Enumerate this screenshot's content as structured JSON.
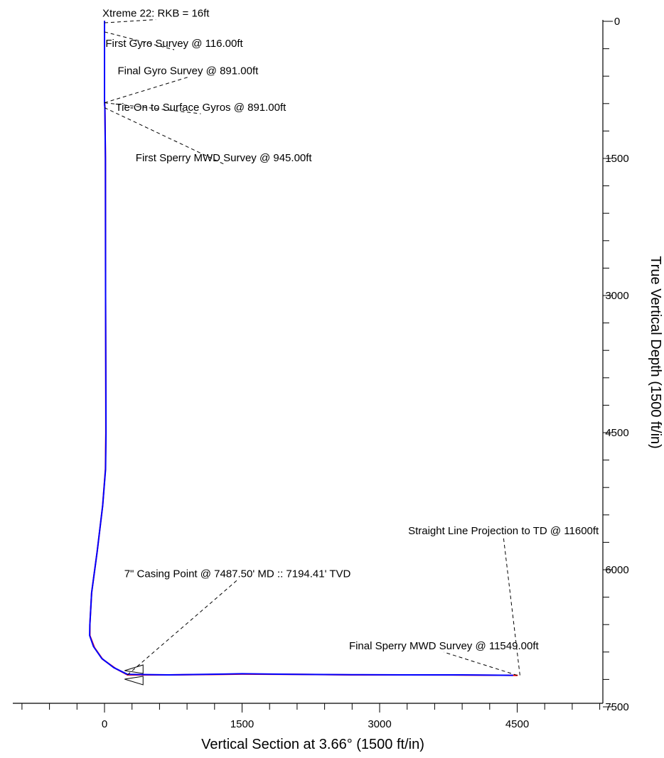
{
  "chart_data": {
    "type": "line",
    "title": "",
    "xlabel": "Vertical Section at 3.66° (1500 ft/in)",
    "ylabel": "True Vertical Depth (1500 ft/in)",
    "xlim": [
      -1000,
      5500
    ],
    "ylim": [
      7500,
      0
    ],
    "x_ticks": [
      0,
      1500,
      3000,
      4500
    ],
    "y_ticks": [
      0,
      1500,
      3000,
      4500,
      6000,
      7500
    ],
    "x_minor_step": 300,
    "y_minor_step": 300,
    "grid": false,
    "series": [
      {
        "color": "#ff0000",
        "x": [
          0,
          0,
          5,
          10,
          12,
          14,
          15,
          10,
          -20,
          -80,
          -140,
          -160,
          -160,
          -110,
          -20,
          120,
          250,
          700,
          1300,
          1500,
          2100,
          2700,
          3300,
          3900,
          4500
        ],
        "y": [
          0,
          891,
          945,
          1500,
          3000,
          3800,
          4500,
          4900,
          5300,
          5800,
          6250,
          6600,
          6720,
          6850,
          6980,
          7080,
          7150,
          7150,
          7145,
          7142,
          7145,
          7150,
          7150,
          7152,
          7155
        ]
      },
      {
        "color": "#0000ff",
        "x": [
          0,
          0,
          4,
          10,
          12,
          14,
          16,
          12,
          -20,
          -80,
          -140,
          -160,
          -162,
          -120,
          -30,
          100,
          250,
          700,
          1300,
          1500,
          2100,
          2700,
          3300,
          3900,
          4450
        ],
        "y": [
          0,
          891,
          945,
          1500,
          3000,
          3800,
          4500,
          4900,
          5300,
          5800,
          6250,
          6600,
          6720,
          6840,
          6970,
          7070,
          7145,
          7150,
          7142,
          7138,
          7145,
          7148,
          7150,
          7150,
          7155
        ]
      }
    ],
    "annotations": [
      {
        "text": "Xtreme 22:  RKB = 16ft",
        "label_x": 560,
        "label_y": -50,
        "point_x": 0,
        "point_y": 16
      },
      {
        "text": "First Gyro Survey @ 116.00ft",
        "label_x": 760,
        "label_y": 280,
        "point_x": 0,
        "point_y": 116
      },
      {
        "text": "Final Gyro Survey @ 891.00ft",
        "label_x": 910,
        "label_y": 580,
        "point_x": 0,
        "point_y": 891
      },
      {
        "text": "Tie-On to Surface Gyros @ 891.00ft",
        "label_x": 1050,
        "label_y": 980,
        "point_x": 0,
        "point_y": 891
      },
      {
        "text": "First Sperry MWD Survey @ 945.00ft",
        "label_x": 1300,
        "label_y": 1530,
        "point_x": 0,
        "point_y": 945
      },
      {
        "text": "7\" Casing Point @ 7487.50' MD  ::  7194.41' TVD",
        "label_x": 1450,
        "label_y": 6080,
        "point_x": 250,
        "point_y": 7150
      },
      {
        "text": "Final Sperry MWD Survey @ 11549.00ft",
        "label_x": 3700,
        "label_y": 6870,
        "point_x": 4500,
        "point_y": 7155
      },
      {
        "text": "Straight Line Projection to TD @ 11600ft",
        "label_x": 4350,
        "label_y": 5610,
        "point_x": 4530,
        "point_y": 7155
      }
    ]
  }
}
